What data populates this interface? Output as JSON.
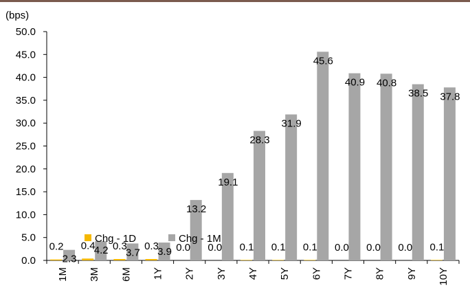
{
  "chart_data": {
    "type": "bar",
    "unit_label": "(bps)",
    "categories": [
      "1M",
      "3M",
      "6M",
      "1Y",
      "2Y",
      "3Y",
      "4Y",
      "5Y",
      "6Y",
      "7Y",
      "8Y",
      "9Y",
      "10Y"
    ],
    "series": [
      {
        "name": "Chg - 1D",
        "color": "#f5b800",
        "values": [
          0.2,
          0.4,
          0.3,
          0.3,
          0.0,
          0.0,
          0.1,
          0.1,
          0.1,
          0.0,
          0.0,
          0.0,
          0.1
        ]
      },
      {
        "name": "Chg - 1M",
        "color": "#a6a6a6",
        "values": [
          2.3,
          4.2,
          3.7,
          3.9,
          13.2,
          19.1,
          28.3,
          31.9,
          45.6,
          40.9,
          40.8,
          38.5,
          37.8
        ]
      }
    ],
    "ylim": [
      0,
      50
    ],
    "yticks": [
      "0.0",
      "5.0",
      "10.0",
      "15.0",
      "20.0",
      "25.0",
      "30.0",
      "35.0",
      "40.0",
      "45.0",
      "50.0"
    ],
    "legend_position": "inside-bottom-left",
    "grid": false,
    "header_rule_color": "#7a5a4e"
  }
}
